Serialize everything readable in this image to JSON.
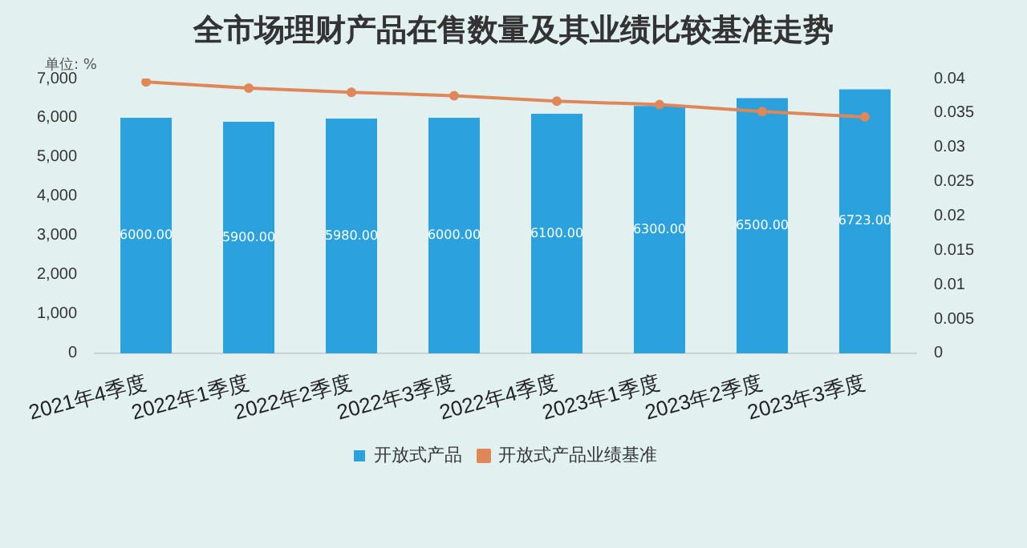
{
  "chart_data": {
    "type": "bar",
    "title": "全市场理财产品在售数量及其业绩比较基准走势",
    "annotations": [
      "单位: %"
    ],
    "categories": [
      "2021年4季度",
      "2022年1季度",
      "2022年2季度",
      "2022年3季度",
      "2022年4季度",
      "2023年1季度",
      "2023年2季度",
      "2023年3季度"
    ],
    "series": [
      {
        "name": "开放式产品",
        "color": "#2ba1de",
        "values": [
          6000,
          5900,
          5980,
          6000,
          6100,
          6300,
          6500,
          6723
        ],
        "value_labels": [
          "6000.00",
          "5900.00",
          "5980.00",
          "6000.00",
          "6100.00",
          "6300.00",
          "6500.00",
          "6723.00"
        ]
      },
      {
        "name": "开放式产品业绩基准",
        "type": "line",
        "axis": "y2",
        "color": "#e0875a",
        "values": [
          0.0395,
          0.0386,
          0.038,
          0.0375,
          0.0367,
          0.0362,
          0.0352,
          0.0344
        ]
      }
    ],
    "ylim": [
      0,
      7000
    ],
    "yticks": [
      {
        "value": 0,
        "label": "0"
      },
      {
        "value": 1000,
        "label": "1,000"
      },
      {
        "value": 2000,
        "label": "2,000"
      },
      {
        "value": 3000,
        "label": "3,000"
      },
      {
        "value": 4000,
        "label": "4,000"
      },
      {
        "value": 5000,
        "label": "5,000"
      },
      {
        "value": 6000,
        "label": "6,000"
      },
      {
        "value": 7000,
        "label": "7,000"
      }
    ],
    "y2lim": [
      0,
      0.04
    ],
    "y2ticks": [
      0,
      0.005,
      0.01,
      0.015,
      0.02,
      0.025,
      0.03,
      0.035,
      0.04
    ],
    "grid": false,
    "legend": "bottom",
    "marker": "circle"
  }
}
